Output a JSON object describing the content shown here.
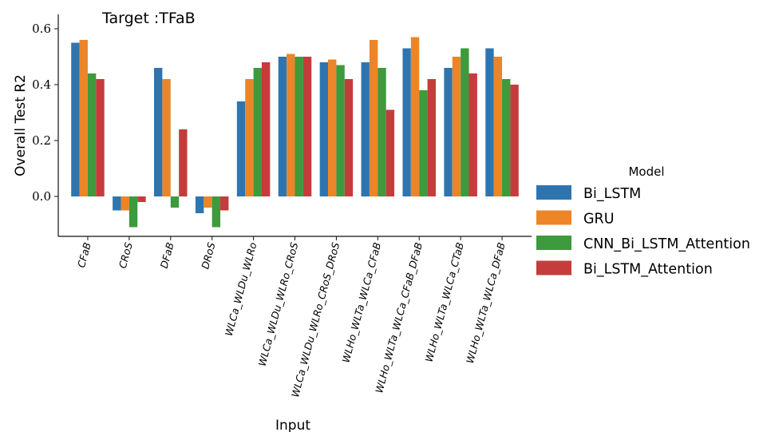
{
  "chart_data": {
    "type": "bar",
    "title": "Target :TFaB",
    "xlabel": "Input",
    "ylabel": "Overall Test R2",
    "ylim": [
      -0.145,
      0.635
    ],
    "yticks": [
      0.0,
      0.2,
      0.4,
      0.6
    ],
    "ytick_labels": [
      "0.0",
      "0.2",
      "0.4",
      "0.6"
    ],
    "grid": false,
    "legend": {
      "title": "Model",
      "placement": "outside-right"
    },
    "categories": [
      "CFaB",
      "CRoS",
      "DFaB",
      "DRoS",
      "WLCa_WLDu_WLRo",
      "WLCa_WLDu_WLRo_CRoS",
      "WLCa_WLDu_WLRo_CRoS_DRoS",
      "WLHo_WLTa_WLCa_CFaB",
      "WLHo_WLTa_WLCa_CFaB_DFaB",
      "WLHo_WLTa_WLCa_CTaB",
      "WLHo_WLTa_WLCa_DFaB"
    ],
    "series": [
      {
        "name": "Bi_LSTM",
        "color": "#2e75b0",
        "values": [
          0.55,
          -0.05,
          0.46,
          -0.06,
          0.34,
          0.5,
          0.48,
          0.48,
          0.53,
          0.46,
          0.53
        ]
      },
      {
        "name": "GRU",
        "color": "#ec8528",
        "values": [
          0.56,
          -0.05,
          0.42,
          -0.04,
          0.42,
          0.51,
          0.49,
          0.56,
          0.57,
          0.5,
          0.5
        ]
      },
      {
        "name": "CNN_Bi_LSTM_Attention",
        "color": "#3d9a3d",
        "values": [
          0.44,
          -0.11,
          -0.04,
          -0.11,
          0.46,
          0.5,
          0.47,
          0.46,
          0.38,
          0.53,
          0.42
        ]
      },
      {
        "name": "Bi_LSTM_Attention",
        "color": "#c63c3c",
        "values": [
          0.42,
          -0.02,
          0.24,
          -0.05,
          0.48,
          0.5,
          0.42,
          0.31,
          0.42,
          0.44,
          0.4
        ]
      }
    ]
  }
}
